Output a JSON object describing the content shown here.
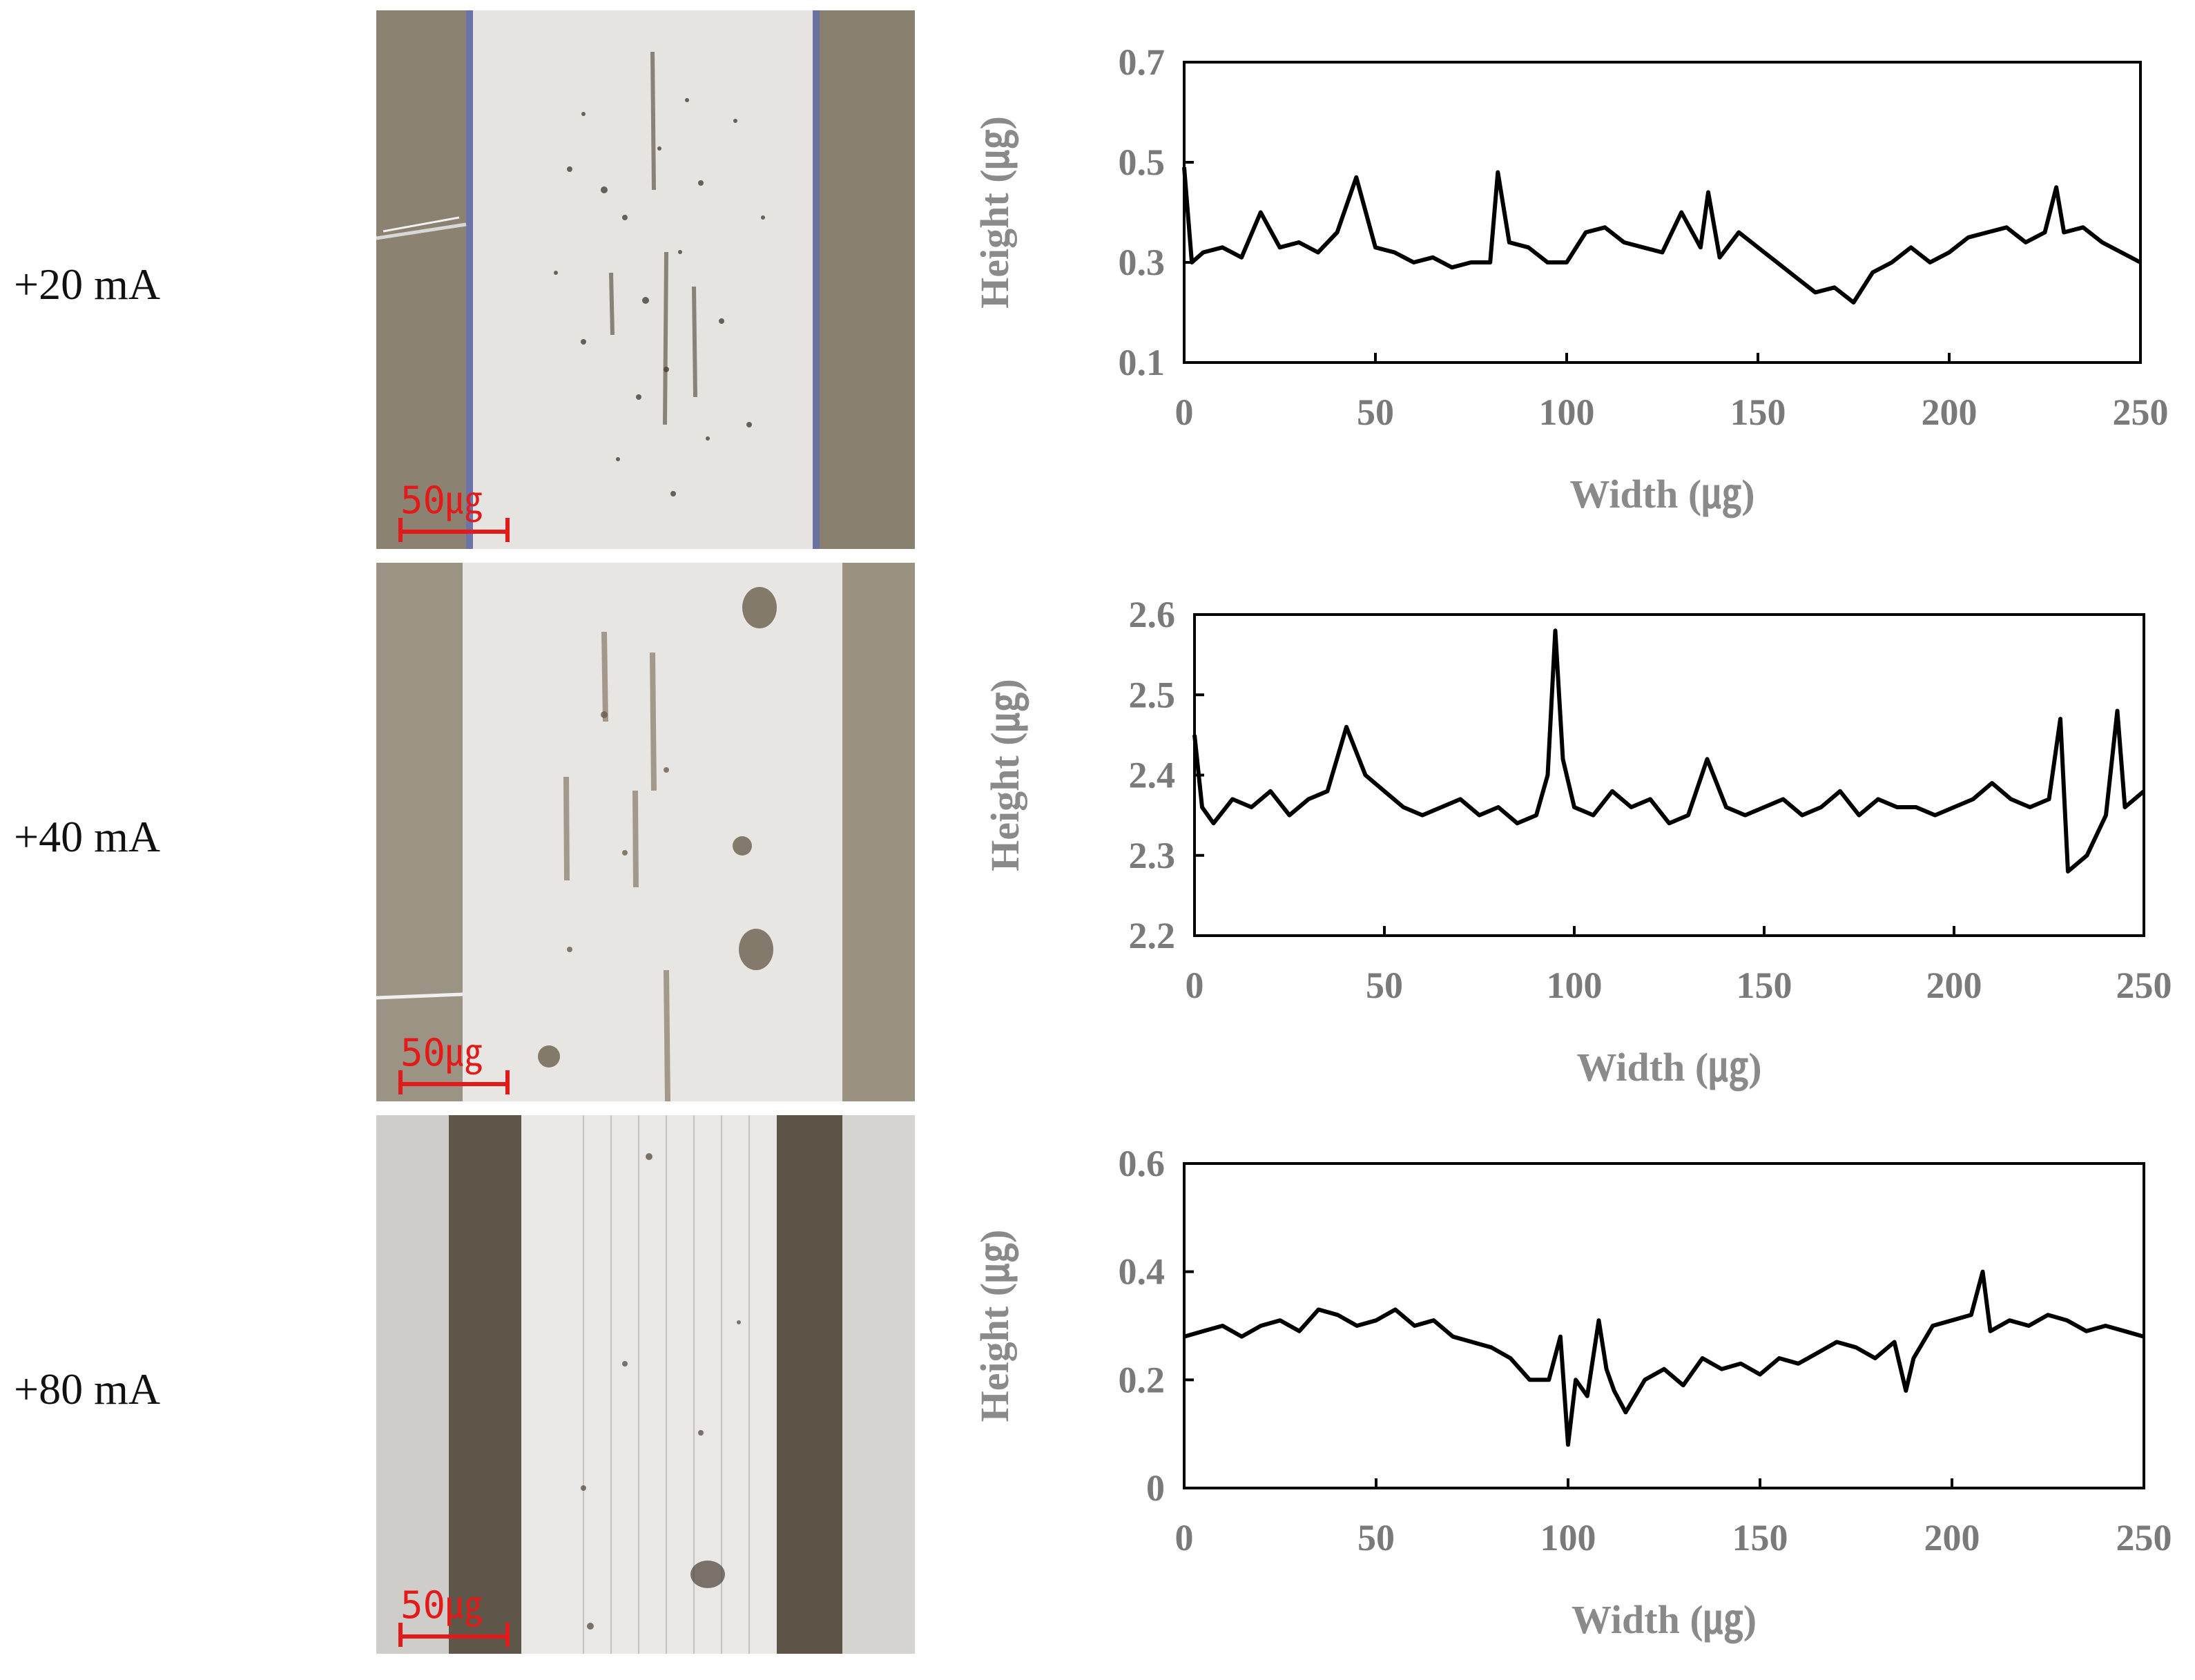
{
  "rows": [
    {
      "label": "+20 mA",
      "scale_text": "50㎍"
    },
    {
      "label": "+40 mA",
      "scale_text": "50㎍"
    },
    {
      "label": "+80 mA",
      "scale_text": "50㎍"
    }
  ],
  "colors": {
    "profile_line": "#000000",
    "axis_text": "#7a7a7a",
    "scale_bar": "#e31a1a"
  },
  "chart_data": [
    {
      "type": "line",
      "xlabel": "Width (㎍)",
      "ylabel": "Height (㎍)",
      "xlim": [
        0,
        250
      ],
      "ylim": [
        0.1,
        0.7
      ],
      "xticks": [
        "0",
        "50",
        "100",
        "150",
        "200",
        "250"
      ],
      "yticks": [
        "0.1",
        "0.3",
        "0.5",
        "0.7"
      ],
      "series": [
        {
          "x": [
            0,
            2,
            5,
            10,
            15,
            20,
            25,
            30,
            35,
            40,
            45,
            50,
            55,
            60,
            65,
            70,
            75,
            80,
            82,
            85,
            90,
            95,
            100,
            105,
            110,
            115,
            120,
            125,
            130,
            135,
            137,
            140,
            145,
            150,
            155,
            160,
            165,
            170,
            175,
            180,
            185,
            190,
            195,
            200,
            205,
            210,
            215,
            220,
            225,
            228,
            230,
            235,
            240,
            245,
            250
          ],
          "values": [
            0.49,
            0.3,
            0.32,
            0.33,
            0.31,
            0.4,
            0.33,
            0.34,
            0.32,
            0.36,
            0.47,
            0.33,
            0.32,
            0.3,
            0.31,
            0.29,
            0.3,
            0.3,
            0.48,
            0.34,
            0.33,
            0.3,
            0.3,
            0.36,
            0.37,
            0.34,
            0.33,
            0.32,
            0.4,
            0.33,
            0.44,
            0.31,
            0.36,
            0.33,
            0.3,
            0.27,
            0.24,
            0.25,
            0.22,
            0.28,
            0.3,
            0.33,
            0.3,
            0.32,
            0.35,
            0.36,
            0.37,
            0.34,
            0.36,
            0.45,
            0.36,
            0.37,
            0.34,
            0.32,
            0.3
          ]
        }
      ]
    },
    {
      "type": "line",
      "xlabel": "Width (㎍)",
      "ylabel": "Height (㎍)",
      "xlim": [
        0,
        250
      ],
      "ylim": [
        2.2,
        2.6
      ],
      "xticks": [
        "0",
        "50",
        "100",
        "150",
        "200",
        "250"
      ],
      "yticks": [
        "2.2",
        "2.3",
        "2.4",
        "2.5",
        "2.6"
      ],
      "series": [
        {
          "x": [
            0,
            2,
            5,
            10,
            15,
            20,
            25,
            30,
            35,
            40,
            45,
            50,
            55,
            60,
            65,
            70,
            75,
            80,
            85,
            90,
            93,
            95,
            97,
            100,
            105,
            110,
            115,
            120,
            125,
            130,
            135,
            140,
            145,
            150,
            155,
            160,
            165,
            170,
            175,
            180,
            185,
            190,
            195,
            200,
            205,
            210,
            215,
            220,
            225,
            228,
            230,
            235,
            240,
            243,
            245,
            250
          ],
          "values": [
            2.45,
            2.36,
            2.34,
            2.37,
            2.36,
            2.38,
            2.35,
            2.37,
            2.38,
            2.46,
            2.4,
            2.38,
            2.36,
            2.35,
            2.36,
            2.37,
            2.35,
            2.36,
            2.34,
            2.35,
            2.4,
            2.58,
            2.42,
            2.36,
            2.35,
            2.38,
            2.36,
            2.37,
            2.34,
            2.35,
            2.42,
            2.36,
            2.35,
            2.36,
            2.37,
            2.35,
            2.36,
            2.38,
            2.35,
            2.37,
            2.36,
            2.36,
            2.35,
            2.36,
            2.37,
            2.39,
            2.37,
            2.36,
            2.37,
            2.47,
            2.28,
            2.3,
            2.35,
            2.48,
            2.36,
            2.38
          ]
        }
      ]
    },
    {
      "type": "line",
      "xlabel": "Width (㎍)",
      "ylabel": "Height (㎍)",
      "xlim": [
        0,
        250
      ],
      "ylim": [
        0,
        0.6
      ],
      "xticks": [
        "0",
        "50",
        "100",
        "150",
        "200",
        "250"
      ],
      "yticks": [
        "0",
        "0.2",
        "0.4",
        "0.6"
      ],
      "series": [
        {
          "x": [
            0,
            5,
            10,
            15,
            20,
            25,
            30,
            35,
            40,
            45,
            50,
            55,
            60,
            65,
            70,
            75,
            80,
            85,
            90,
            95,
            98,
            100,
            102,
            105,
            108,
            110,
            112,
            115,
            120,
            125,
            130,
            135,
            140,
            145,
            150,
            155,
            160,
            165,
            170,
            175,
            180,
            185,
            188,
            190,
            195,
            200,
            205,
            208,
            210,
            215,
            220,
            225,
            230,
            235,
            240,
            245,
            250
          ],
          "values": [
            0.28,
            0.29,
            0.3,
            0.28,
            0.3,
            0.31,
            0.29,
            0.33,
            0.32,
            0.3,
            0.31,
            0.33,
            0.3,
            0.31,
            0.28,
            0.27,
            0.26,
            0.24,
            0.2,
            0.2,
            0.28,
            0.08,
            0.2,
            0.17,
            0.31,
            0.22,
            0.18,
            0.14,
            0.2,
            0.22,
            0.19,
            0.24,
            0.22,
            0.23,
            0.21,
            0.24,
            0.23,
            0.25,
            0.27,
            0.26,
            0.24,
            0.27,
            0.18,
            0.24,
            0.3,
            0.31,
            0.32,
            0.4,
            0.29,
            0.31,
            0.3,
            0.32,
            0.31,
            0.29,
            0.3,
            0.29,
            0.28
          ]
        }
      ]
    }
  ]
}
